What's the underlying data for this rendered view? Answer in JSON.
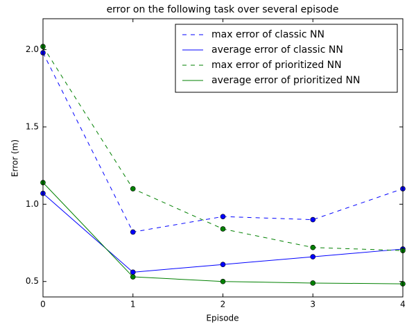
{
  "chart_data": {
    "type": "line",
    "title": "error on the following task over several episode",
    "x_label": "Episode",
    "y_label": "Error (m)",
    "x": [
      0,
      1,
      2,
      3,
      4
    ],
    "series": [
      {
        "name": "max error of classic NN",
        "color": "#0000ff",
        "linestyle": "dashed",
        "values": [
          1.98,
          0.82,
          0.92,
          0.9,
          1.1
        ]
      },
      {
        "name": "average error of classic NN",
        "color": "#0000ff",
        "linestyle": "solid",
        "values": [
          1.07,
          0.56,
          0.61,
          0.66,
          0.71
        ]
      },
      {
        "name": "max error of prioritized NN",
        "color": "#008000",
        "linestyle": "dashed",
        "values": [
          2.02,
          1.1,
          0.84,
          0.72,
          0.7
        ]
      },
      {
        "name": "average error of prioritized NN",
        "color": "#008000",
        "linestyle": "solid",
        "values": [
          1.14,
          0.53,
          0.5,
          0.49,
          0.485
        ]
      }
    ],
    "xlim": [
      0,
      4
    ],
    "xticks": [
      0,
      1,
      2,
      3,
      4
    ],
    "ylim": [
      0.4,
      2.2
    ],
    "yticks": [
      {
        "value": 0.5,
        "label": "0.5"
      },
      {
        "value": 1,
        "label": "1.0"
      },
      {
        "value": 1.5,
        "label": "1.5"
      },
      {
        "value": 2,
        "label": "2.0"
      }
    ],
    "legend": "upper right",
    "grid": false
  }
}
